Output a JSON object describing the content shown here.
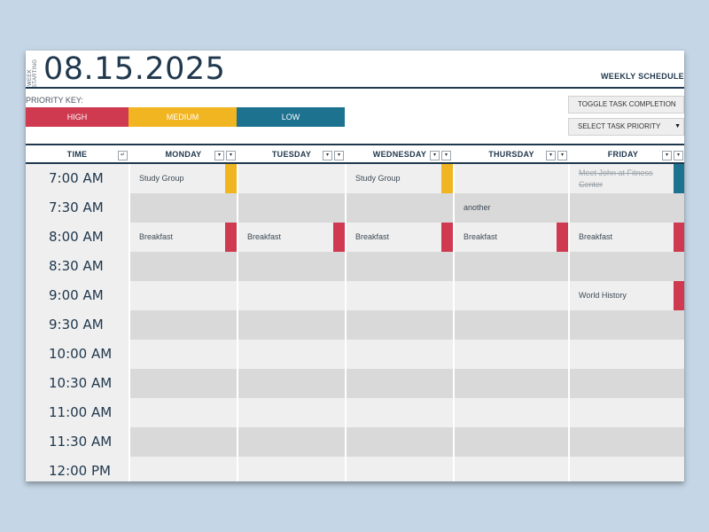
{
  "header": {
    "week_label_line1": "WEEK",
    "week_label_line2": "STARTING",
    "date": "08.15.2025",
    "title": "WEEKLY SCHEDULE"
  },
  "priority_key": {
    "label": "PRIORITY KEY:",
    "high": "HIGH",
    "medium": "MEDIUM",
    "low": "LOW"
  },
  "buttons": {
    "toggle": "TOGGLE TASK COMPLETION",
    "select": "SELECT TASK PRIORITY"
  },
  "columns": [
    "TIME",
    "MONDAY",
    "TUESDAY",
    "WEDNESDAY",
    "THURSDAY",
    "FRIDAY"
  ],
  "times": [
    "7:00 AM",
    "7:30 AM",
    "8:00 AM",
    "8:30 AM",
    "9:00 AM",
    "9:30 AM",
    "10:00 AM",
    "10:30 AM",
    "11:00 AM",
    "11:30 AM",
    "12:00 PM"
  ],
  "tasks": {
    "mon_700": "Study Group",
    "wed_700": "Study Group",
    "fri_700": "Meet John at Fitness Center",
    "thu_730": "another",
    "mon_800": "Breakfast",
    "tue_800": "Breakfast",
    "wed_800": "Breakfast",
    "thu_800": "Breakfast",
    "fri_800": "Breakfast",
    "fri_900": "World History"
  },
  "colors": {
    "high": "#cf3a50",
    "medium": "#f1b522",
    "low": "#1d7290",
    "navy": "#20384e"
  }
}
